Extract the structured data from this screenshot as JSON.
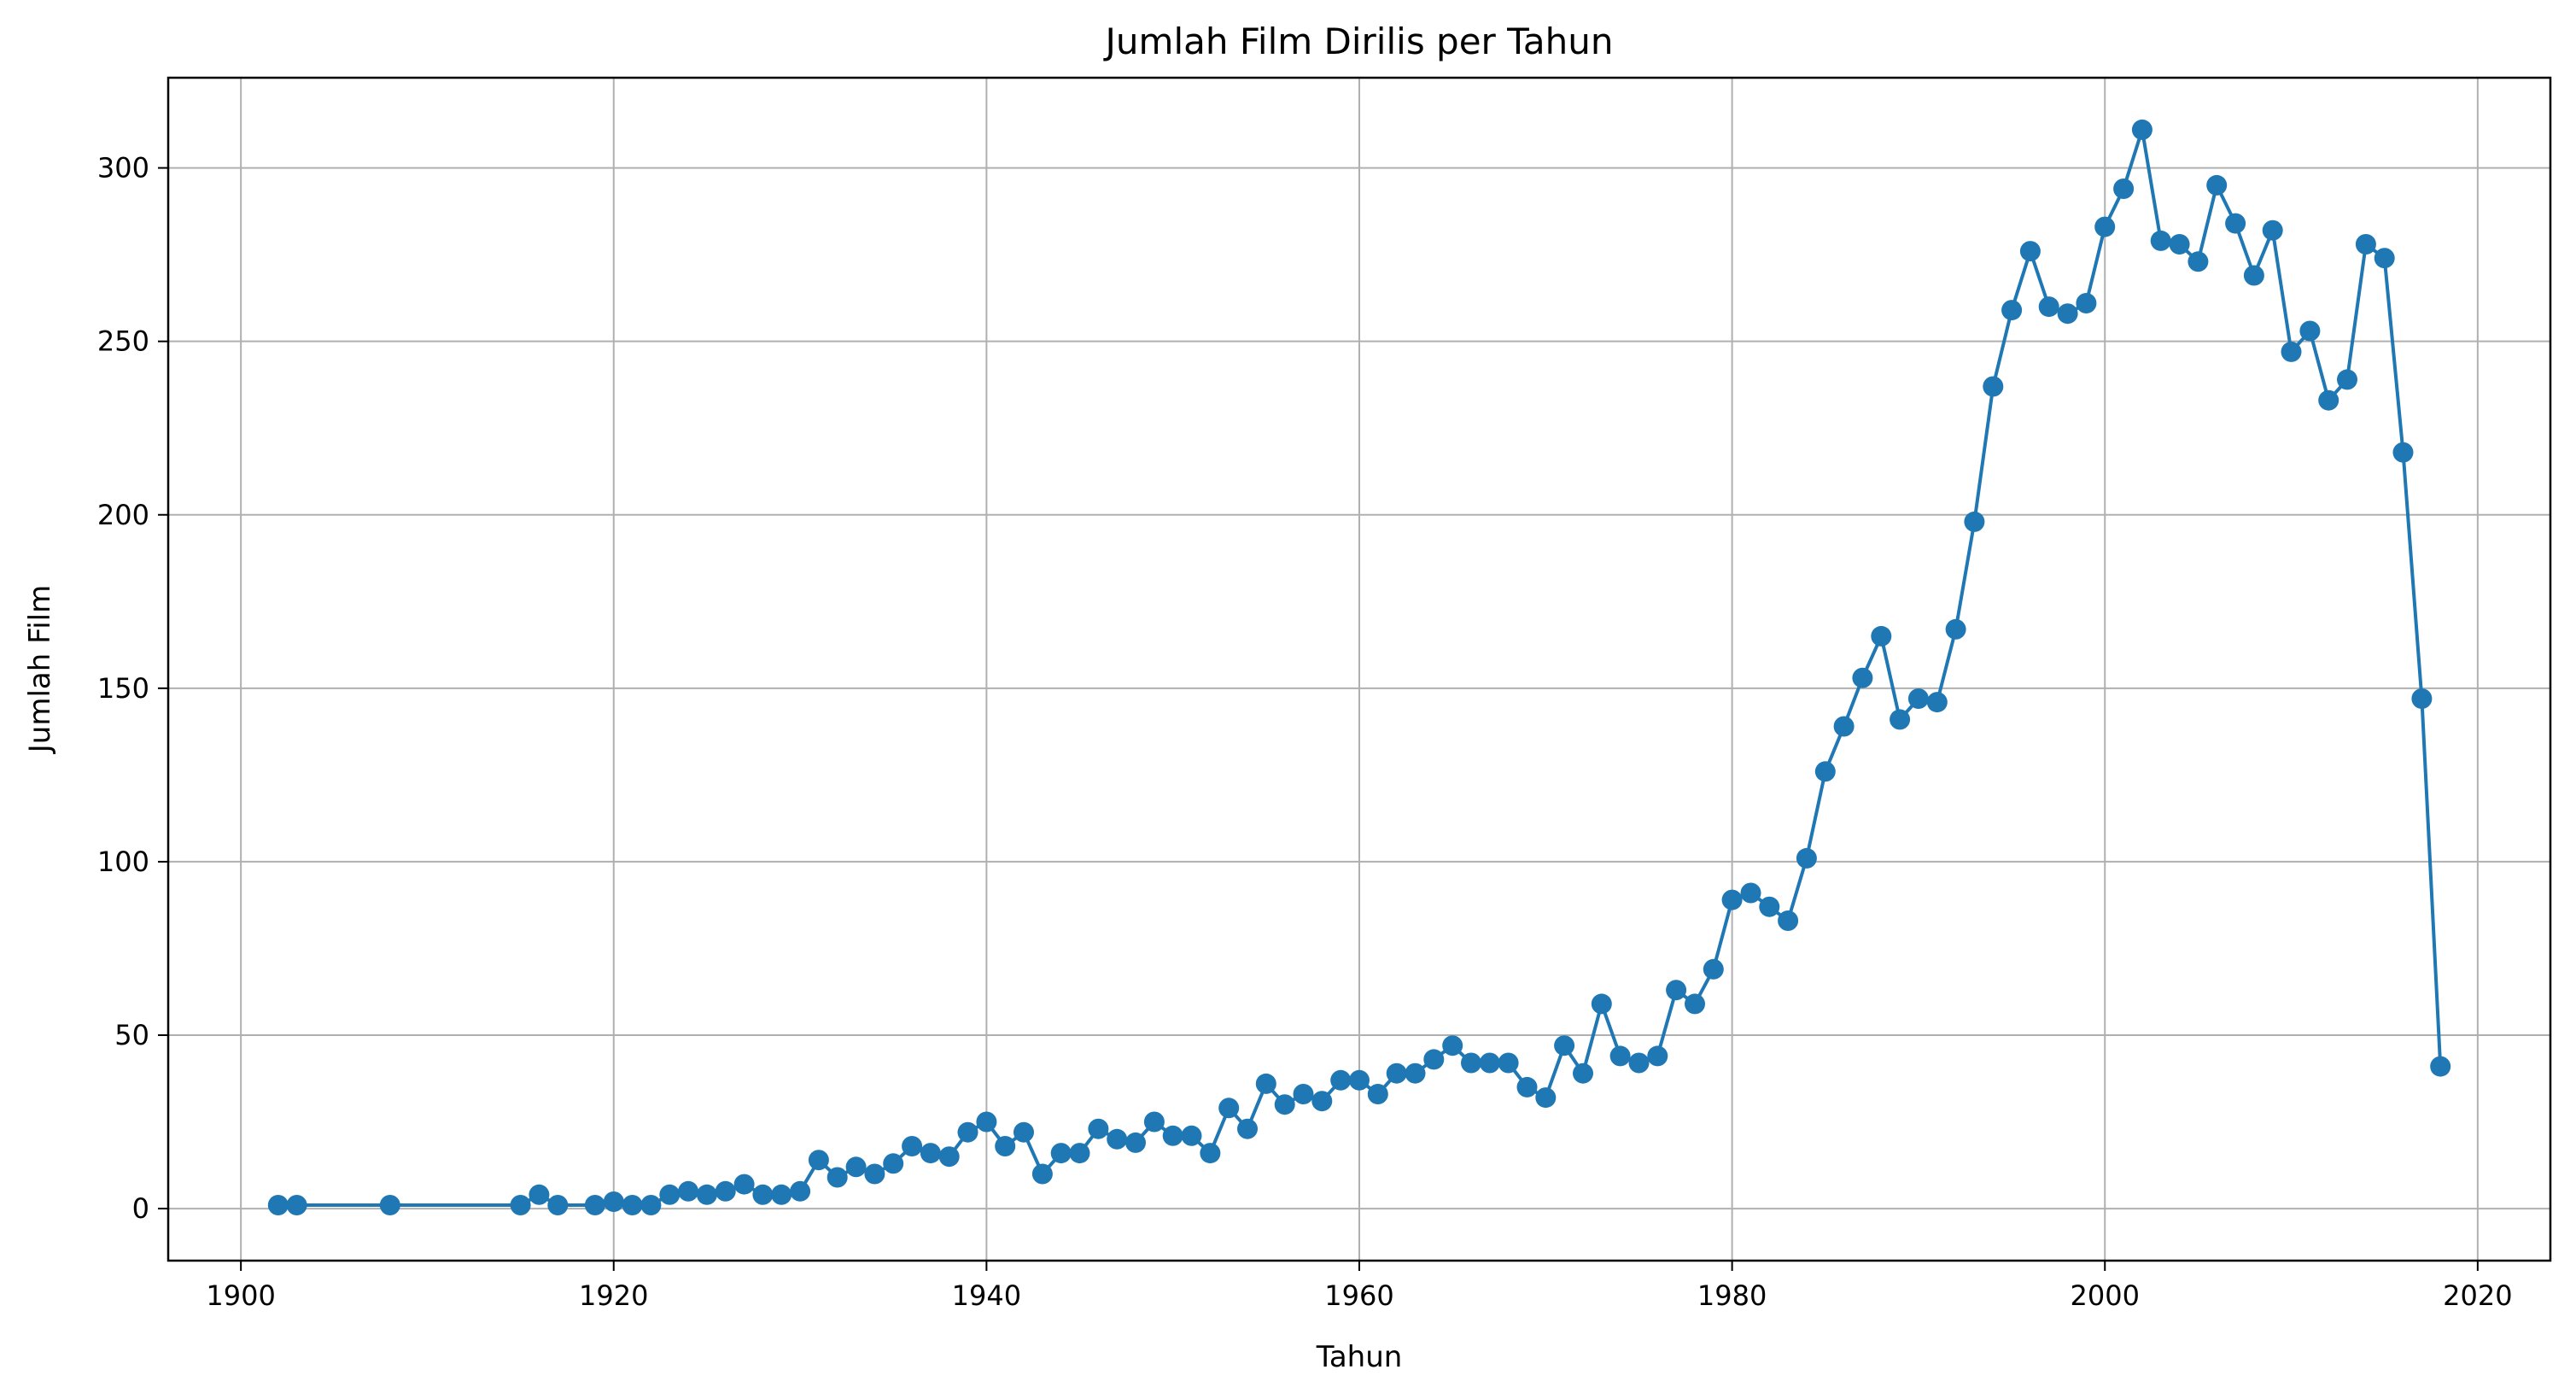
{
  "chart_data": {
    "type": "line",
    "title": "Jumlah Film Dirilis per Tahun",
    "xlabel": "Tahun",
    "ylabel": "Jumlah Film",
    "xlim": [
      1896.1,
      2023.9
    ],
    "ylim": [
      -15,
      326
    ],
    "xticks": [
      1900,
      1920,
      1940,
      1960,
      1980,
      2000,
      2020
    ],
    "yticks": [
      0,
      50,
      100,
      150,
      200,
      250,
      300
    ],
    "grid": true,
    "marker": "circle",
    "color": "#1f77b4",
    "series": [
      {
        "x": [
          1902,
          1903,
          1908,
          1915,
          1916,
          1917,
          1919,
          1920,
          1921,
          1922,
          1923,
          1924,
          1925,
          1926,
          1927,
          1928,
          1929,
          1930,
          1931,
          1932,
          1933,
          1934,
          1935,
          1936,
          1937,
          1938,
          1939,
          1940,
          1941,
          1942,
          1943,
          1944,
          1945,
          1946,
          1947,
          1948,
          1949,
          1950,
          1951,
          1952,
          1953,
          1954,
          1955,
          1956,
          1957,
          1958,
          1959,
          1960,
          1961,
          1962,
          1963,
          1964,
          1965,
          1966,
          1967,
          1968,
          1969,
          1970,
          1971,
          1972,
          1973,
          1974,
          1975,
          1976,
          1977,
          1978,
          1979,
          1980,
          1981,
          1982,
          1983,
          1984,
          1985,
          1986,
          1987,
          1988,
          1989,
          1990,
          1991,
          1992,
          1993,
          1994,
          1995,
          1996,
          1997,
          1998,
          1999,
          2000,
          2001,
          2002,
          2003,
          2004,
          2005,
          2006,
          2007,
          2008,
          2009,
          2010,
          2011,
          2012,
          2013,
          2014,
          2015,
          2016,
          2017,
          2018
        ],
        "y": [
          1,
          1,
          1,
          1,
          4,
          1,
          1,
          2,
          1,
          1,
          4,
          5,
          4,
          5,
          7,
          4,
          4,
          5,
          14,
          9,
          12,
          10,
          13,
          18,
          16,
          15,
          22,
          25,
          18,
          22,
          10,
          16,
          16,
          23,
          20,
          19,
          25,
          21,
          21,
          16,
          29,
          23,
          36,
          30,
          33,
          31,
          37,
          37,
          33,
          39,
          39,
          43,
          47,
          42,
          42,
          42,
          35,
          32,
          47,
          39,
          59,
          44,
          42,
          44,
          63,
          59,
          69,
          89,
          91,
          87,
          83,
          101,
          126,
          139,
          153,
          165,
          141,
          147,
          146,
          167,
          198,
          237,
          259,
          276,
          260,
          258,
          261,
          283,
          294,
          311,
          279,
          278,
          273,
          295,
          284,
          269,
          282,
          247,
          253,
          233,
          239,
          278,
          274,
          218,
          147,
          41
        ]
      }
    ]
  }
}
